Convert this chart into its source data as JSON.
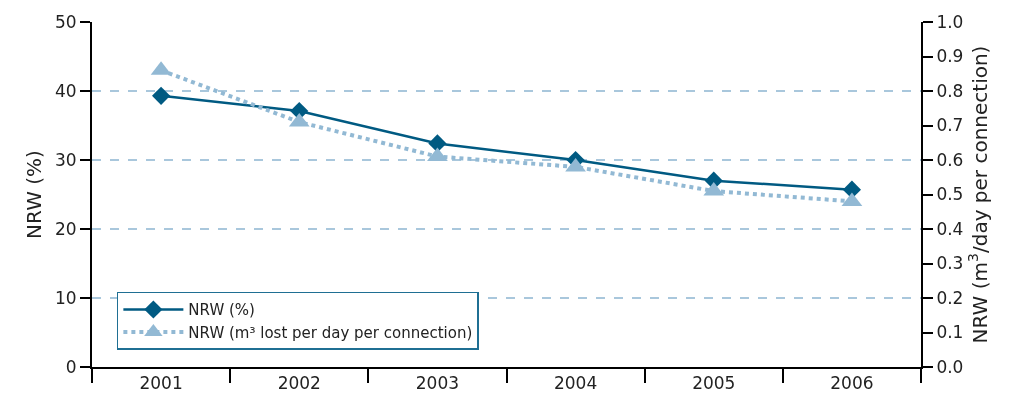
{
  "chart_data": {
    "type": "line",
    "categories": [
      "2001",
      "2002",
      "2003",
      "2004",
      "2005",
      "2006"
    ],
    "ylabel": "NRW (%)",
    "y2label": "NRW (m$^{3}$/day per connection)",
    "ylim": [
      0,
      50
    ],
    "yticks": [
      0,
      10,
      20,
      30,
      40,
      50
    ],
    "y2lim": [
      0,
      1
    ],
    "y2ticks": [
      {
        "value": 0,
        "label": "0.0"
      },
      {
        "value": 0.1,
        "label": "0.1"
      },
      {
        "value": 0.2,
        "label": "0.2"
      },
      {
        "value": 0.3,
        "label": "0.3"
      },
      {
        "value": 0.4,
        "label": "0.4"
      },
      {
        "value": 0.5,
        "label": "0.5"
      },
      {
        "value": 0.6,
        "label": "0.6"
      },
      {
        "value": 0.7,
        "label": "0.7"
      },
      {
        "value": 0.8,
        "label": "0.8"
      },
      {
        "value": 0.9,
        "label": "0.9"
      },
      {
        "value": 1,
        "label": "1.0"
      }
    ],
    "grid": "y",
    "legend": "bottom left",
    "series": [
      {
        "name": "NRW (%)",
        "color": "#005a82",
        "marker": "diamond",
        "line_style": "solid",
        "values": [
          39.3,
          37.1,
          32.4,
          30.0,
          27.0,
          25.7
        ]
      },
      {
        "name": "NRW (m³ lost per day per connection)",
        "color": "#92b9d4",
        "marker": "triangle",
        "line_style": "dotted",
        "axis": "y2",
        "values": [
          0.86,
          0.71,
          0.61,
          0.58,
          0.51,
          0.48
        ]
      }
    ]
  }
}
